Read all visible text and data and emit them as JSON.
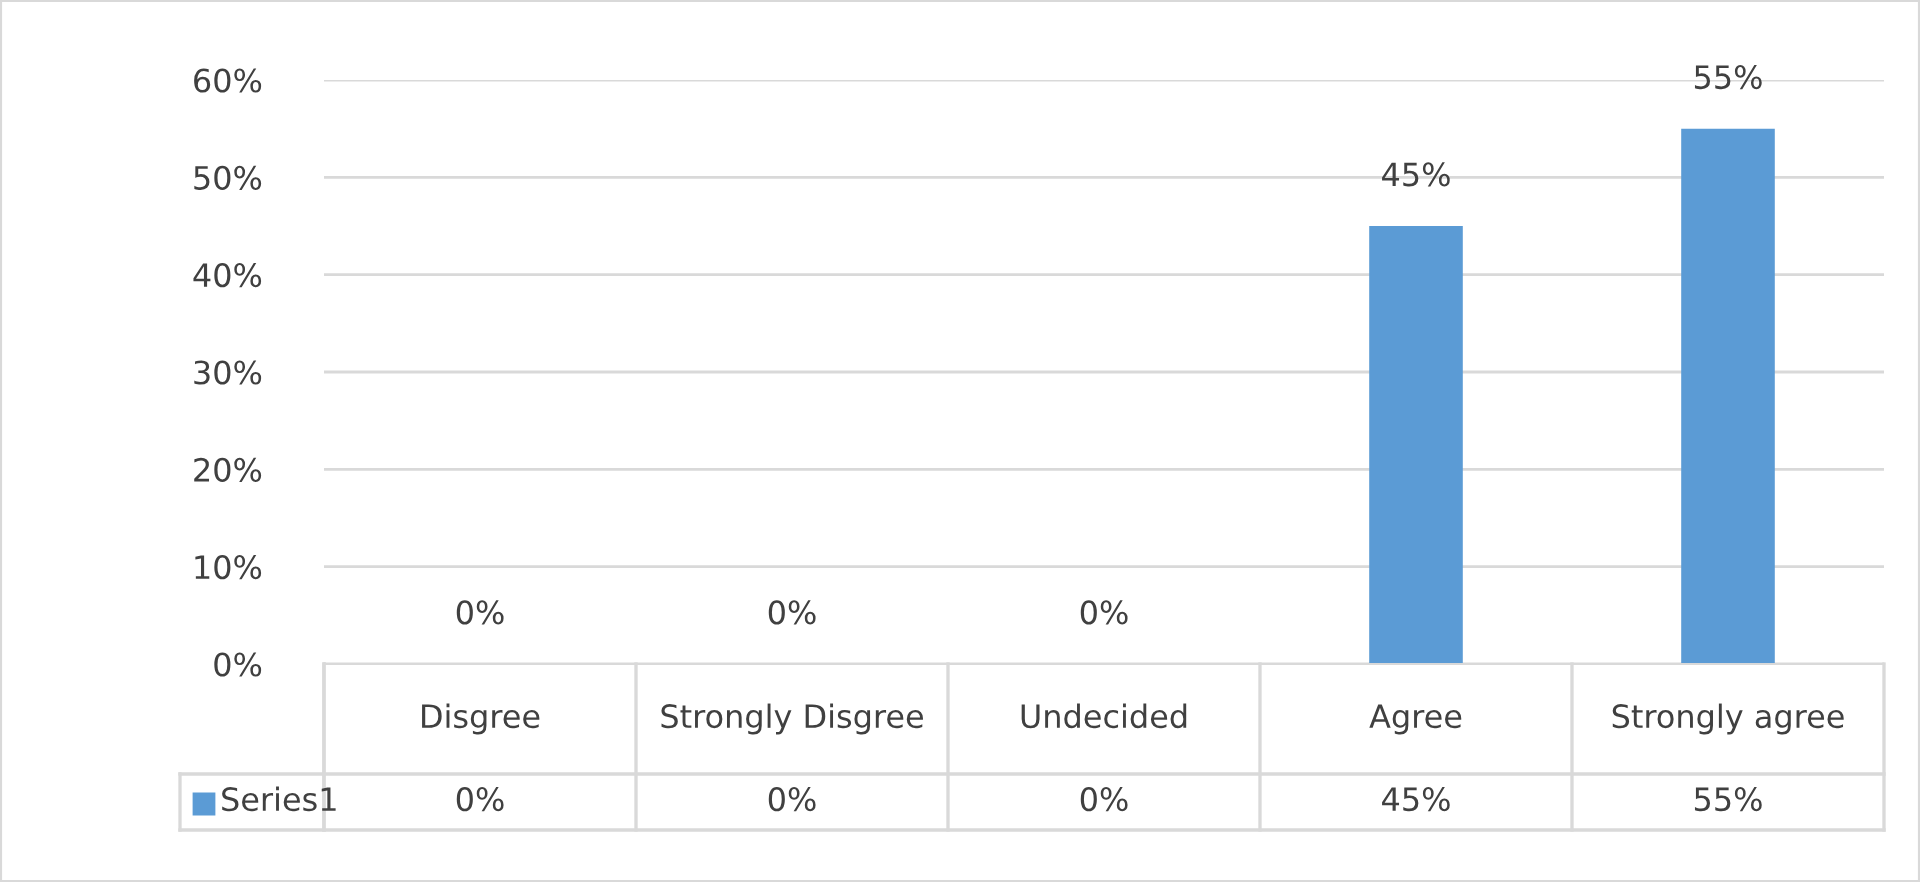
{
  "chart_data": {
    "type": "bar",
    "categories": [
      "Disgree",
      "Strongly Disgree",
      "Undecided",
      "Agree",
      "Strongly agree"
    ],
    "series": [
      {
        "name": "Series1",
        "color": "#5b9bd5",
        "values": [
          0,
          0,
          0,
          45,
          55
        ],
        "value_labels": [
          "0%",
          "0%",
          "0%",
          "45%",
          "55%"
        ]
      }
    ],
    "ylim": [
      0,
      60
    ],
    "yticks": [
      {
        "value": 0,
        "label": "0%"
      },
      {
        "value": 10,
        "label": "10%"
      },
      {
        "value": 20,
        "label": "20%"
      },
      {
        "value": 30,
        "label": "30%"
      },
      {
        "value": 40,
        "label": "40%"
      },
      {
        "value": 50,
        "label": "50%"
      },
      {
        "value": 60,
        "label": "60%"
      }
    ],
    "grid": "y",
    "legend": "bottom",
    "data_labels": true
  }
}
